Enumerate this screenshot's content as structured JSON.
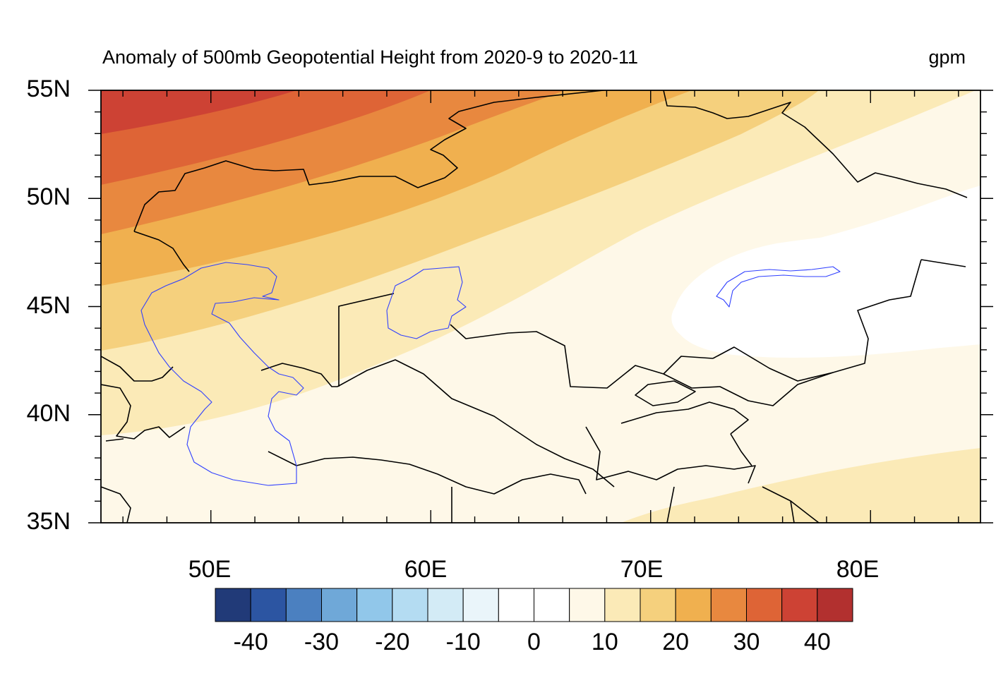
{
  "title": "Anomaly of 500mb Geopotential Height from 2020-9 to 2020-11",
  "units": "gpm",
  "map": {
    "lon_range": [
      45,
      85
    ],
    "lat_range": [
      35,
      55
    ],
    "lat_labels": [
      "55N",
      "50N",
      "45N",
      "40N",
      "35N"
    ],
    "lon_labels": [
      "50E",
      "60E",
      "70E",
      "80E"
    ]
  },
  "chart_data": {
    "type": "heatmap",
    "title": "Anomaly of 500mb Geopotential Height from 2020-9 to 2020-11",
    "units": "gpm",
    "xlim": [
      45,
      85
    ],
    "ylim": [
      35,
      55
    ],
    "field_summary": "Positive anomalies everywhere; maximum (>35 gpm) in the northwest near 45-55E, 53-55N, decreasing toward the southeast; a 0-5 gpm minimum centered near 75E, 44N; 10-15 gpm band in the southeast corner near 70-85E, 35-38N.",
    "contour_levels": [
      -40,
      -35,
      -30,
      -25,
      -20,
      -15,
      -10,
      -5,
      0,
      5,
      10,
      15,
      20,
      25,
      30,
      35,
      40
    ],
    "colorbar": {
      "labels": [
        "-40",
        "-30",
        "-20",
        "-10",
        "0",
        "10",
        "20",
        "30",
        "40"
      ],
      "colors": [
        "#213a78",
        "#2c55a2",
        "#4b80c0",
        "#6fa8d8",
        "#91c7ea",
        "#b4dcf2",
        "#d3ebf6",
        "#eaf5fa",
        "#ffffff",
        "#ffffff",
        "#fef8e8",
        "#fbeab7",
        "#f5d07d",
        "#f0b04f",
        "#e8883f",
        "#de6436",
        "#cd4234",
        "#b2302f"
      ]
    }
  }
}
